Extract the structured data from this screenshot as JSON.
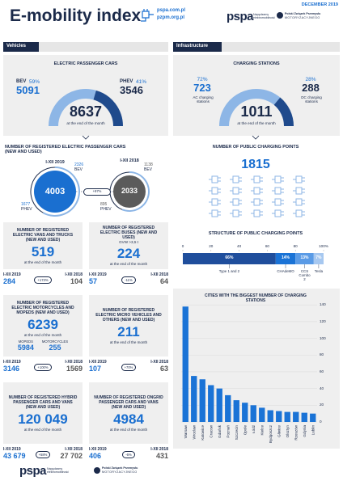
{
  "header": {
    "title": "E-mobility index",
    "links": [
      "pspa.com.pl",
      "pzpm.org.pl"
    ],
    "date": "DECEMBER 2019",
    "logo": "pspa",
    "logo_tagline": "Napędzamy elektromobilność",
    "partner_line1": "Polski Związek Przemysłu",
    "partner_line2": "MOTORYZACYJNEGO"
  },
  "sections": [
    "Vehicles",
    "Infrastructure"
  ],
  "passenger_cars": {
    "title": "ELECTRIC PASSENGER CARS",
    "names": [
      "BEV",
      "PHEV"
    ],
    "shares": [
      59,
      41
    ],
    "share_labels": [
      "59%",
      "41%"
    ],
    "counts": [
      5091,
      3546
    ],
    "total": 8637,
    "caption": "at the end of the month",
    "colors": [
      "#8db6e6",
      "#1f4a8c"
    ]
  },
  "charging_stations": {
    "title": "CHARGING STATIONS",
    "names": [
      "AC charging stations",
      "DC charging stations"
    ],
    "shares": [
      72,
      28
    ],
    "share_labels": [
      "72%",
      "28%"
    ],
    "counts": [
      723,
      288
    ],
    "total": 1011,
    "caption": "at the end of the month",
    "colors": [
      "#8db6e6",
      "#1f4a8c"
    ]
  },
  "registered_cars": {
    "title": "NUMBER OF REGISTERED ELECTRIC PASSENGER CARS (NEW AND USED)",
    "bev_label": "BEV",
    "phev_label": "PHEV",
    "change": "+97%",
    "periods": [
      {
        "label": "I-XII 2019",
        "total": 4003,
        "bev": 2326,
        "phev": 1677,
        "color": "#1a6fd0"
      },
      {
        "label": "I-XII 2018",
        "total": 2033,
        "bev": 1138,
        "phev": 895,
        "color": "#5b5b5b"
      }
    ]
  },
  "charging_points": {
    "title": "NUMBER OF PUBLIC CHARGING POINTS",
    "total": 1815
  },
  "structure": {
    "title": "STRUCTURE OF PUBLIC CHARGING POINTS",
    "xlim": [
      0,
      100
    ],
    "xticks": [
      0,
      20,
      40,
      60,
      80,
      {
        "value": 100,
        "label": "100%"
      }
    ],
    "names": [
      "Type 1 and 2",
      "CHAdeMO",
      "CCS Combo 2",
      "Tesla"
    ],
    "values": [
      66,
      14,
      13,
      7
    ],
    "value_labels": [
      "66%",
      "14%",
      "13%",
      "7%"
    ],
    "colors": [
      "#1f4e9c",
      "#1a73d6",
      "#5a9be6",
      "#a7c8f0"
    ]
  },
  "cities": {
    "title": "CITIES WITH THE BIGGEST NUMBER OF CHARGING STATIONS",
    "categories": [
      "Warsaw",
      "Wroclaw",
      "Katowice",
      "Cracow",
      "Gdańsk",
      "Poznań",
      "Szczecin",
      "Opole",
      "Łódź",
      "Kielce",
      "Bydgoszcz",
      "Gliwice",
      "Olsztyn",
      "Rzeszów",
      "Gdynia",
      "Lublin"
    ],
    "values": [
      138,
      55,
      51,
      44,
      40,
      32,
      26,
      23,
      20,
      17,
      14,
      13,
      12,
      12,
      11,
      10
    ],
    "ylim": [
      0,
      145
    ],
    "yticks": [
      0,
      20,
      40,
      60,
      80,
      100,
      120,
      140
    ],
    "color": "#1a73d6",
    "grid": true
  },
  "panels": [
    {
      "title": "NUMBER OF REGISTERED ELECTRIC VANS AND TRUCKS (NEW AND USED)",
      "total": 519,
      "caption": "at the end of the month",
      "period_labels": [
        "I-XII 2019",
        "I-XII 2018"
      ],
      "period_values": [
        284,
        104
      ],
      "change": "+173%"
    },
    {
      "title": "NUMBER OF REGISTERED ELECTRIC BUSES (NEW AND USED)",
      "subtitle": "GVW >3,5 t",
      "total": 224,
      "caption": "at the end of the month",
      "period_labels": [
        "I-XII 2019",
        "I-XII 2018"
      ],
      "period_values": [
        57,
        64
      ],
      "change": "-11%"
    },
    {
      "title": "NUMBER OF REGISTERED ELECTRIC MOTORCYCLES AND MOPEDS (NEW AND USED)",
      "total": 6239,
      "caption": "at the end of the month",
      "breakdown": [
        {
          "name": "MOPEDS",
          "value": 5984
        },
        {
          "name": "MOTORCYCLES",
          "value": 255
        }
      ],
      "period_labels": [
        "I-XII 2019",
        "I-XII 2018"
      ],
      "period_values": [
        3146,
        1569
      ],
      "change": "+100%"
    },
    {
      "title": "NUMBER OF REGISTERED ELECTRIC MICRO VEHICLES AND OTHERS (NEW AND USED)",
      "total": 211,
      "caption": "at the end of the month",
      "period_labels": [
        "I-XII 2019",
        "I-XII 2018"
      ],
      "period_values": [
        107,
        63
      ],
      "change": "+70%"
    },
    {
      "title": "NUMBER OF REGISTERED HYBRID PASSENGER CARS AND VANS (NEW AND USED)",
      "total": "120 049",
      "caption": "at the end of the month",
      "period_labels": [
        "I-XII 2019",
        "I-XII 2018"
      ],
      "period_values": [
        "43 679",
        "27 702"
      ],
      "change": "+58%"
    },
    {
      "title": "NUMBER OF REGISTERED ONGRID PASSENGER CARS AND VANS (NEW AND USED)",
      "total": 4984,
      "caption": "at the end of the month",
      "period_labels": [
        "I-XII 2019",
        "I-XII 2018"
      ],
      "period_values": [
        406,
        431
      ],
      "change": "-6%"
    }
  ],
  "footer": {
    "logo": "pspa",
    "logo_tagline": "Napędzamy elektromobilność",
    "partner_line1": "Polski Związek Przemysłu",
    "partner_line2": "MOTORYZACYJNEGO"
  }
}
